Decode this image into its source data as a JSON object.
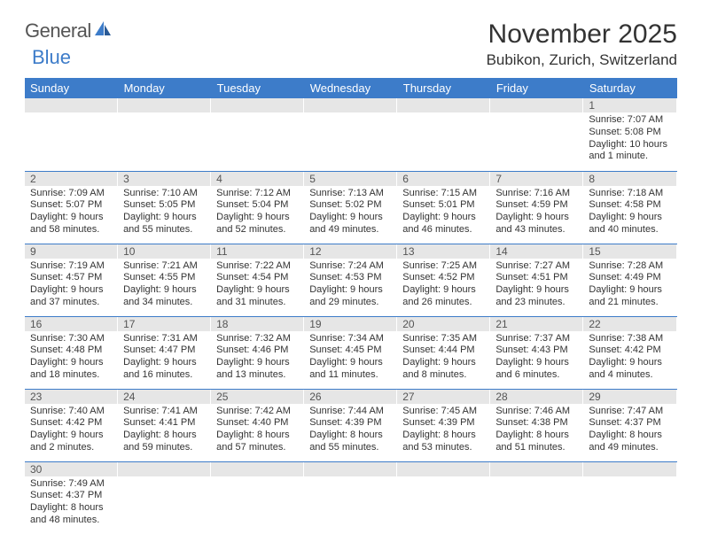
{
  "logo": {
    "text1": "General",
    "text2": "Blue"
  },
  "title": "November 2025",
  "location": "Bubikon, Zurich, Switzerland",
  "colors": {
    "header_bg": "#3d7cc9",
    "header_text": "#ffffff",
    "daynum_bg": "#e6e6e6",
    "rule": "#3d7cc9",
    "text": "#333333",
    "background": "#ffffff"
  },
  "weekdays": [
    "Sunday",
    "Monday",
    "Tuesday",
    "Wednesday",
    "Thursday",
    "Friday",
    "Saturday"
  ],
  "weeks": [
    [
      {
        "n": "",
        "sr": "",
        "ss": "",
        "dl": ""
      },
      {
        "n": "",
        "sr": "",
        "ss": "",
        "dl": ""
      },
      {
        "n": "",
        "sr": "",
        "ss": "",
        "dl": ""
      },
      {
        "n": "",
        "sr": "",
        "ss": "",
        "dl": ""
      },
      {
        "n": "",
        "sr": "",
        "ss": "",
        "dl": ""
      },
      {
        "n": "",
        "sr": "",
        "ss": "",
        "dl": ""
      },
      {
        "n": "1",
        "sr": "Sunrise: 7:07 AM",
        "ss": "Sunset: 5:08 PM",
        "dl": "Daylight: 10 hours and 1 minute."
      }
    ],
    [
      {
        "n": "2",
        "sr": "Sunrise: 7:09 AM",
        "ss": "Sunset: 5:07 PM",
        "dl": "Daylight: 9 hours and 58 minutes."
      },
      {
        "n": "3",
        "sr": "Sunrise: 7:10 AM",
        "ss": "Sunset: 5:05 PM",
        "dl": "Daylight: 9 hours and 55 minutes."
      },
      {
        "n": "4",
        "sr": "Sunrise: 7:12 AM",
        "ss": "Sunset: 5:04 PM",
        "dl": "Daylight: 9 hours and 52 minutes."
      },
      {
        "n": "5",
        "sr": "Sunrise: 7:13 AM",
        "ss": "Sunset: 5:02 PM",
        "dl": "Daylight: 9 hours and 49 minutes."
      },
      {
        "n": "6",
        "sr": "Sunrise: 7:15 AM",
        "ss": "Sunset: 5:01 PM",
        "dl": "Daylight: 9 hours and 46 minutes."
      },
      {
        "n": "7",
        "sr": "Sunrise: 7:16 AM",
        "ss": "Sunset: 4:59 PM",
        "dl": "Daylight: 9 hours and 43 minutes."
      },
      {
        "n": "8",
        "sr": "Sunrise: 7:18 AM",
        "ss": "Sunset: 4:58 PM",
        "dl": "Daylight: 9 hours and 40 minutes."
      }
    ],
    [
      {
        "n": "9",
        "sr": "Sunrise: 7:19 AM",
        "ss": "Sunset: 4:57 PM",
        "dl": "Daylight: 9 hours and 37 minutes."
      },
      {
        "n": "10",
        "sr": "Sunrise: 7:21 AM",
        "ss": "Sunset: 4:55 PM",
        "dl": "Daylight: 9 hours and 34 minutes."
      },
      {
        "n": "11",
        "sr": "Sunrise: 7:22 AM",
        "ss": "Sunset: 4:54 PM",
        "dl": "Daylight: 9 hours and 31 minutes."
      },
      {
        "n": "12",
        "sr": "Sunrise: 7:24 AM",
        "ss": "Sunset: 4:53 PM",
        "dl": "Daylight: 9 hours and 29 minutes."
      },
      {
        "n": "13",
        "sr": "Sunrise: 7:25 AM",
        "ss": "Sunset: 4:52 PM",
        "dl": "Daylight: 9 hours and 26 minutes."
      },
      {
        "n": "14",
        "sr": "Sunrise: 7:27 AM",
        "ss": "Sunset: 4:51 PM",
        "dl": "Daylight: 9 hours and 23 minutes."
      },
      {
        "n": "15",
        "sr": "Sunrise: 7:28 AM",
        "ss": "Sunset: 4:49 PM",
        "dl": "Daylight: 9 hours and 21 minutes."
      }
    ],
    [
      {
        "n": "16",
        "sr": "Sunrise: 7:30 AM",
        "ss": "Sunset: 4:48 PM",
        "dl": "Daylight: 9 hours and 18 minutes."
      },
      {
        "n": "17",
        "sr": "Sunrise: 7:31 AM",
        "ss": "Sunset: 4:47 PM",
        "dl": "Daylight: 9 hours and 16 minutes."
      },
      {
        "n": "18",
        "sr": "Sunrise: 7:32 AM",
        "ss": "Sunset: 4:46 PM",
        "dl": "Daylight: 9 hours and 13 minutes."
      },
      {
        "n": "19",
        "sr": "Sunrise: 7:34 AM",
        "ss": "Sunset: 4:45 PM",
        "dl": "Daylight: 9 hours and 11 minutes."
      },
      {
        "n": "20",
        "sr": "Sunrise: 7:35 AM",
        "ss": "Sunset: 4:44 PM",
        "dl": "Daylight: 9 hours and 8 minutes."
      },
      {
        "n": "21",
        "sr": "Sunrise: 7:37 AM",
        "ss": "Sunset: 4:43 PM",
        "dl": "Daylight: 9 hours and 6 minutes."
      },
      {
        "n": "22",
        "sr": "Sunrise: 7:38 AM",
        "ss": "Sunset: 4:42 PM",
        "dl": "Daylight: 9 hours and 4 minutes."
      }
    ],
    [
      {
        "n": "23",
        "sr": "Sunrise: 7:40 AM",
        "ss": "Sunset: 4:42 PM",
        "dl": "Daylight: 9 hours and 2 minutes."
      },
      {
        "n": "24",
        "sr": "Sunrise: 7:41 AM",
        "ss": "Sunset: 4:41 PM",
        "dl": "Daylight: 8 hours and 59 minutes."
      },
      {
        "n": "25",
        "sr": "Sunrise: 7:42 AM",
        "ss": "Sunset: 4:40 PM",
        "dl": "Daylight: 8 hours and 57 minutes."
      },
      {
        "n": "26",
        "sr": "Sunrise: 7:44 AM",
        "ss": "Sunset: 4:39 PM",
        "dl": "Daylight: 8 hours and 55 minutes."
      },
      {
        "n": "27",
        "sr": "Sunrise: 7:45 AM",
        "ss": "Sunset: 4:39 PM",
        "dl": "Daylight: 8 hours and 53 minutes."
      },
      {
        "n": "28",
        "sr": "Sunrise: 7:46 AM",
        "ss": "Sunset: 4:38 PM",
        "dl": "Daylight: 8 hours and 51 minutes."
      },
      {
        "n": "29",
        "sr": "Sunrise: 7:47 AM",
        "ss": "Sunset: 4:37 PM",
        "dl": "Daylight: 8 hours and 49 minutes."
      }
    ],
    [
      {
        "n": "30",
        "sr": "Sunrise: 7:49 AM",
        "ss": "Sunset: 4:37 PM",
        "dl": "Daylight: 8 hours and 48 minutes."
      },
      {
        "n": "",
        "sr": "",
        "ss": "",
        "dl": ""
      },
      {
        "n": "",
        "sr": "",
        "ss": "",
        "dl": ""
      },
      {
        "n": "",
        "sr": "",
        "ss": "",
        "dl": ""
      },
      {
        "n": "",
        "sr": "",
        "ss": "",
        "dl": ""
      },
      {
        "n": "",
        "sr": "",
        "ss": "",
        "dl": ""
      },
      {
        "n": "",
        "sr": "",
        "ss": "",
        "dl": ""
      }
    ]
  ]
}
